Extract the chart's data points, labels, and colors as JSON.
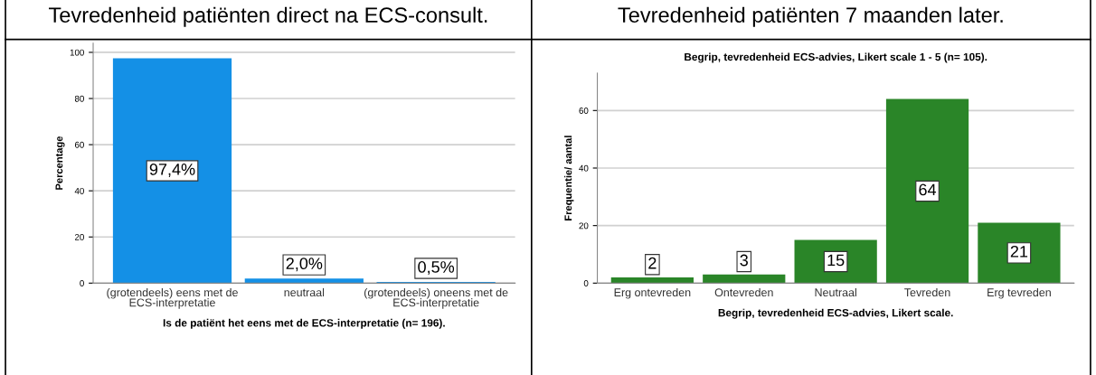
{
  "chart_data": [
    {
      "type": "bar",
      "title": "Tevredenheid patiënten direct na ECS-consult.",
      "xlabel": "Is de patiënt het eens met de ECS-interpretatie (n= 196).",
      "ylabel": "Percentage",
      "categories": [
        "(grotendeels) eens met de\nECS-interpretatie",
        "neutraal",
        "(grotendeels) oneens met de\nECS-interpretatie"
      ],
      "values": [
        97.4,
        2.0,
        0.5
      ],
      "value_labels": [
        "97,4%",
        "2,0%",
        "0,5%"
      ],
      "color": "#1490e6",
      "ylim": [
        0,
        104
      ],
      "yticks": [
        0,
        20,
        40,
        60,
        80,
        100
      ],
      "grid": "y"
    },
    {
      "type": "bar",
      "title": "Tevredenheid patiënten 7 maanden later.",
      "subtitle": "Begrip, tevredenheid ECS-advies, Likert scale 1 - 5 (n= 105).",
      "xlabel": "Begrip, tevredenheid ECS-advies, Likert scale.",
      "ylabel": "Frequentie/ aantal",
      "categories": [
        "Erg ontevreden",
        "Ontevreden",
        "Neutraal",
        "Tevreden",
        "Erg tevreden"
      ],
      "values": [
        2,
        3,
        15,
        64,
        21
      ],
      "data_labels": true,
      "color": "#2a8528",
      "ylim": [
        0,
        73
      ],
      "yticks": [
        0,
        20,
        40,
        60
      ],
      "grid": "y"
    }
  ]
}
